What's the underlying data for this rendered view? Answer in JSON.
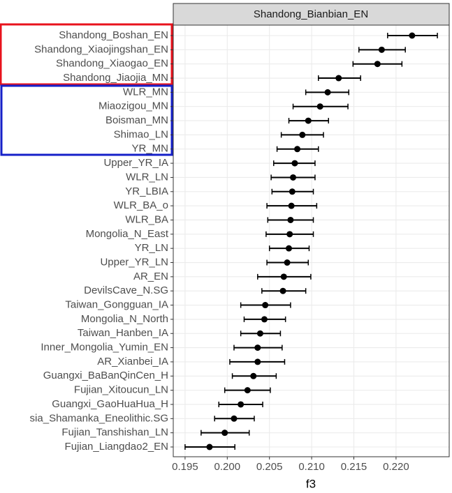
{
  "chart_data": {
    "type": "dotplot",
    "strip_title": "Shandong_Bianbian_EN",
    "x_label": "f3",
    "categories": [
      "Shandong_Boshan_EN",
      "Shandong_Xiaojingshan_EN",
      "Shandong_Xiaogao_EN",
      "Shandong_Jiaojia_MN",
      "WLR_MN",
      "Miaozigou_MN",
      "Boisman_MN",
      "Shimao_LN",
      "YR_MN",
      "Upper_YR_IA",
      "WLR_LN",
      "YR_LBIA",
      "WLR_BA_o",
      "WLR_BA",
      "Mongolia_N_East",
      "YR_LN",
      "Upper_YR_LN",
      "AR_EN",
      "DevilsCave_N.SG",
      "Taiwan_Gongguan_IA",
      "Mongolia_N_North",
      "Taiwan_Hanben_IA",
      "Inner_Mongolia_Yumin_EN",
      "AR_Xianbei_IA",
      "Guangxi_BaBanQinCen_H",
      "Fujian_Xitoucun_LN",
      "Guangxi_GaoHuaHua_H",
      "sia_Shamanka_Eneolithic.SG",
      "Fujian_Tanshishan_LN",
      "Fujian_Liangdao2_EN"
    ],
    "values": [
      0.2219,
      0.2183,
      0.2178,
      0.2132,
      0.2119,
      0.211,
      0.2096,
      0.2089,
      0.2083,
      0.208,
      0.2078,
      0.2077,
      0.2076,
      0.2075,
      0.2074,
      0.2073,
      0.2071,
      0.2067,
      0.2066,
      0.2045,
      0.2044,
      0.2039,
      0.2036,
      0.2036,
      0.2031,
      0.2024,
      0.2016,
      0.2008,
      0.1997,
      0.1979
    ],
    "lower": [
      0.219,
      0.2156,
      0.2149,
      0.2108,
      0.2093,
      0.2078,
      0.2073,
      0.2064,
      0.2059,
      0.2055,
      0.2052,
      0.2053,
      0.2047,
      0.2048,
      0.2046,
      0.205,
      0.2047,
      0.2036,
      0.2041,
      0.2016,
      0.202,
      0.2016,
      0.2008,
      0.2003,
      0.2006,
      0.1997,
      0.199,
      0.1985,
      0.1969,
      0.195
    ],
    "upper": [
      0.2249,
      0.2211,
      0.2207,
      0.2158,
      0.2144,
      0.2143,
      0.212,
      0.2114,
      0.2108,
      0.2104,
      0.2104,
      0.2102,
      0.2106,
      0.2102,
      0.2102,
      0.2097,
      0.2096,
      0.2099,
      0.2093,
      0.2075,
      0.2069,
      0.2063,
      0.2065,
      0.2068,
      0.2058,
      0.2051,
      0.2042,
      0.2032,
      0.2026,
      0.2009
    ],
    "color": "#000000",
    "xlim": [
      0.1936,
      0.2263
    ],
    "xticks": [
      0.195,
      {
        "value": 0.2,
        "label": "0.200"
      },
      0.205,
      {
        "value": 0.21,
        "label": "0.210"
      },
      0.215,
      {
        "value": 0.22,
        "label": "0.220"
      }
    ],
    "grid": true
  }
}
